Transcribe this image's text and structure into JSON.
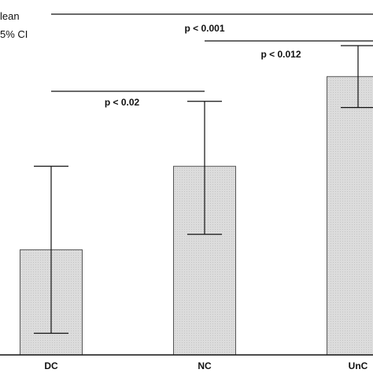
{
  "chart_data": {
    "type": "bar",
    "title": "",
    "xlabel": "",
    "ylabel": "",
    "ylim": [
      0,
      100
    ],
    "categories": [
      "DC",
      "NC",
      "UnC"
    ],
    "series": [
      {
        "values": [
          34,
          61,
          90
        ],
        "ci_lower": [
          7,
          39,
          80
        ],
        "ci_upper": [
          61,
          82,
          100
        ]
      }
    ],
    "legend": {
      "placement": "top-left",
      "entries": [
        "lean",
        "5% CI"
      ]
    },
    "annotations": [
      {
        "label": "p < 0.001",
        "from": "DC",
        "to": "UnC"
      },
      {
        "label": "p < 0.012",
        "from": "NC",
        "to": "UnC"
      },
      {
        "label": "p < 0.02",
        "from": "DC",
        "to": "NC"
      }
    ],
    "colors": {
      "bar_fill": "#d8d8d8",
      "bar_stroke": "#555555",
      "line": "#111111"
    }
  }
}
